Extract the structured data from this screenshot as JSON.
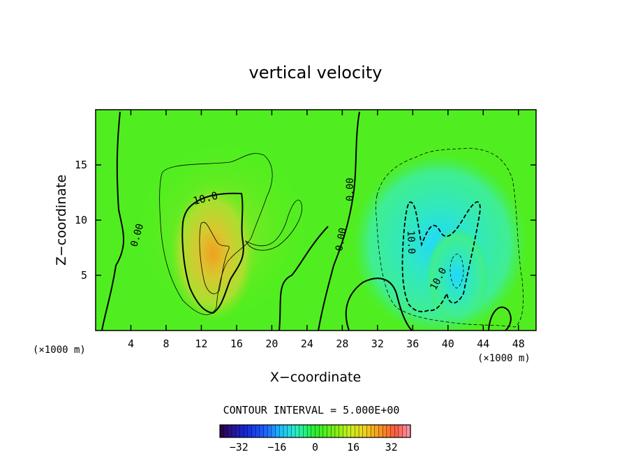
{
  "chart_data": {
    "type": "heatmap",
    "title": "vertical velocity",
    "xlabel": "X−coordinate",
    "ylabel": "Z−coordinate",
    "x_unit": "(×1000 m)",
    "z_unit": "(×1000 m)",
    "xlim": [
      0,
      50
    ],
    "ylim": [
      0,
      20
    ],
    "x_ticks": [
      4,
      8,
      12,
      16,
      20,
      24,
      28,
      32,
      36,
      40,
      44,
      48
    ],
    "y_ticks": [
      5,
      10,
      15
    ],
    "contour_interval_text": "CONTOUR INTERVAL = 5.000E+00",
    "contour_labels": [
      "10.0",
      "0.00",
      "0.00",
      "0.00",
      "10.0",
      "10.0"
    ],
    "colorbar": {
      "range": [
        -40,
        40
      ],
      "ticks": [
        -32,
        -16,
        0,
        16,
        32
      ],
      "tick_labels": [
        "−32",
        "−16",
        "0",
        "16",
        "32"
      ]
    },
    "features": [
      {
        "kind": "updraft",
        "x": 13,
        "z": 7,
        "peak": 20
      },
      {
        "kind": "downdraft",
        "x": 41,
        "z": 5,
        "peak": -20
      }
    ]
  }
}
